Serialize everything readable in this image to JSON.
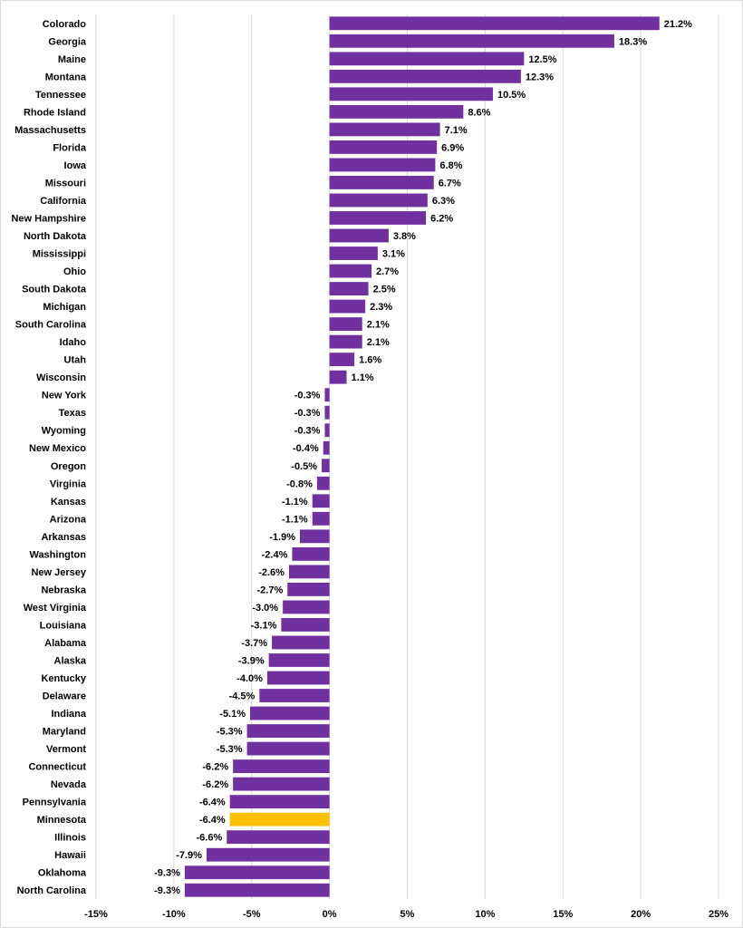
{
  "chart_data": {
    "type": "bar",
    "orientation": "horizontal",
    "title": "",
    "xlabel": "",
    "ylabel": "",
    "xlim": [
      -15,
      25
    ],
    "x_ticks": [
      -15,
      -10,
      -5,
      0,
      5,
      10,
      15,
      20,
      25
    ],
    "x_tick_labels": [
      "-15%",
      "-10%",
      "-5%",
      "0%",
      "5%",
      "10%",
      "15%",
      "20%",
      "25%"
    ],
    "grid": "vertical",
    "bar_color": "#7030A0",
    "highlight_color": "#FFC000",
    "highlight_category": "Minnesota",
    "categories": [
      "Colorado",
      "Georgia",
      "Maine",
      "Montana",
      "Tennessee",
      "Rhode Island",
      "Massachusetts",
      "Florida",
      "Iowa",
      "Missouri",
      "California",
      "New Hampshire",
      "North Dakota",
      "Mississippi",
      "Ohio",
      "South Dakota",
      "Michigan",
      "South Carolina",
      "Idaho",
      "Utah",
      "Wisconsin",
      "New York",
      "Texas",
      "Wyoming",
      "New Mexico",
      "Oregon",
      "Virginia",
      "Kansas",
      "Arizona",
      "Arkansas",
      "Washington",
      "New Jersey",
      "Nebraska",
      "West Virginia",
      "Louisiana",
      "Alabama",
      "Alaska",
      "Kentucky",
      "Delaware",
      "Indiana",
      "Maryland",
      "Vermont",
      "Connecticut",
      "Nevada",
      "Pennsylvania",
      "Minnesota",
      "Illinois",
      "Hawaii",
      "Oklahoma",
      "North Carolina"
    ],
    "values": [
      21.2,
      18.3,
      12.5,
      12.3,
      10.5,
      8.6,
      7.1,
      6.9,
      6.8,
      6.7,
      6.3,
      6.2,
      3.8,
      3.1,
      2.7,
      2.5,
      2.3,
      2.1,
      2.1,
      1.6,
      1.1,
      -0.3,
      -0.3,
      -0.3,
      -0.4,
      -0.5,
      -0.8,
      -1.1,
      -1.1,
      -1.9,
      -2.4,
      -2.6,
      -2.7,
      -3.0,
      -3.1,
      -3.7,
      -3.9,
      -4.0,
      -4.5,
      -5.1,
      -5.3,
      -5.3,
      -6.2,
      -6.2,
      -6.4,
      -6.4,
      -6.6,
      -7.9,
      -9.3,
      -9.3
    ],
    "value_labels": [
      "21.2%",
      "18.3%",
      "12.5%",
      "12.3%",
      "10.5%",
      "8.6%",
      "7.1%",
      "6.9%",
      "6.8%",
      "6.7%",
      "6.3%",
      "6.2%",
      "3.8%",
      "3.1%",
      "2.7%",
      "2.5%",
      "2.3%",
      "2.1%",
      "2.1%",
      "1.6%",
      "1.1%",
      "-0.3%",
      "-0.3%",
      "-0.3%",
      "-0.4%",
      "-0.5%",
      "-0.8%",
      "-1.1%",
      "-1.1%",
      "-1.9%",
      "-2.4%",
      "-2.6%",
      "-2.7%",
      "-3.0%",
      "-3.1%",
      "-3.7%",
      "-3.9%",
      "-4.0%",
      "-4.5%",
      "-5.1%",
      "-5.3%",
      "-5.3%",
      "-6.2%",
      "-6.2%",
      "-6.4%",
      "-6.4%",
      "-6.6%",
      "-7.9%",
      "-9.3%",
      "-9.3%"
    ]
  }
}
